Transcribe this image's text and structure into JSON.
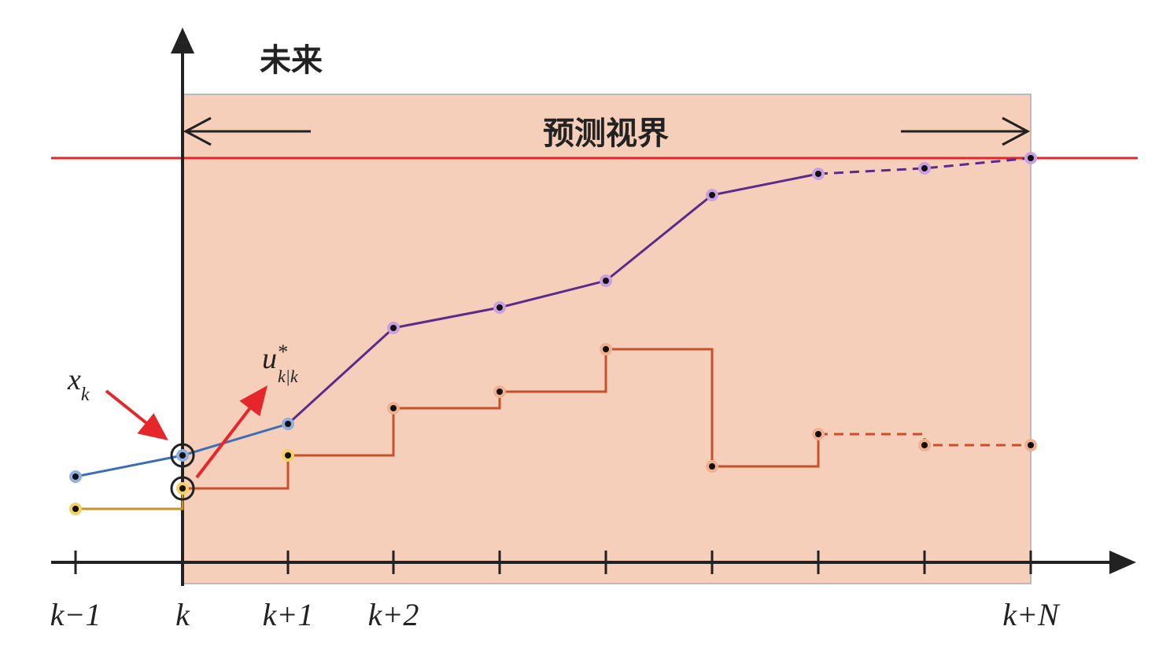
{
  "header": {
    "future": "未来",
    "horizon": "预测视界"
  },
  "annotations": {
    "state": {
      "base": "x",
      "sub": "k"
    },
    "control": {
      "base": "u",
      "sup": "*",
      "sub": "k|k"
    }
  },
  "axis": {
    "tick_labels": [
      "k−1",
      "k",
      "k+1",
      "k+2",
      "k+N"
    ]
  }
}
